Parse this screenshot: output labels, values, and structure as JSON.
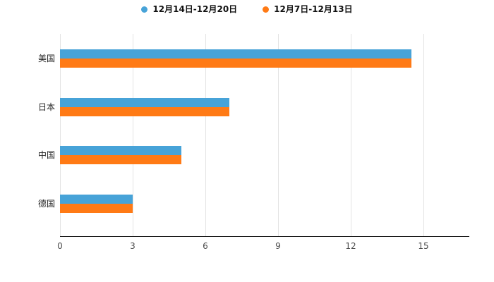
{
  "chart_data": {
    "type": "bar",
    "orientation": "horizontal",
    "title": "",
    "categories": [
      "美国",
      "日本",
      "中国",
      "德国"
    ],
    "series": [
      {
        "name": "12月14日-12月20日",
        "color": "#47a3d8",
        "values": [
          14.5,
          7,
          5,
          3
        ]
      },
      {
        "name": "12月7日-12月13日",
        "color": "#ff7a15",
        "values": [
          14.5,
          7,
          5,
          3
        ]
      }
    ],
    "xlim": [
      0,
      15
    ],
    "xticks": [
      0,
      3,
      6,
      9,
      12,
      15
    ],
    "grid": true,
    "legend_position": "top",
    "background_color": "#ffffff"
  }
}
